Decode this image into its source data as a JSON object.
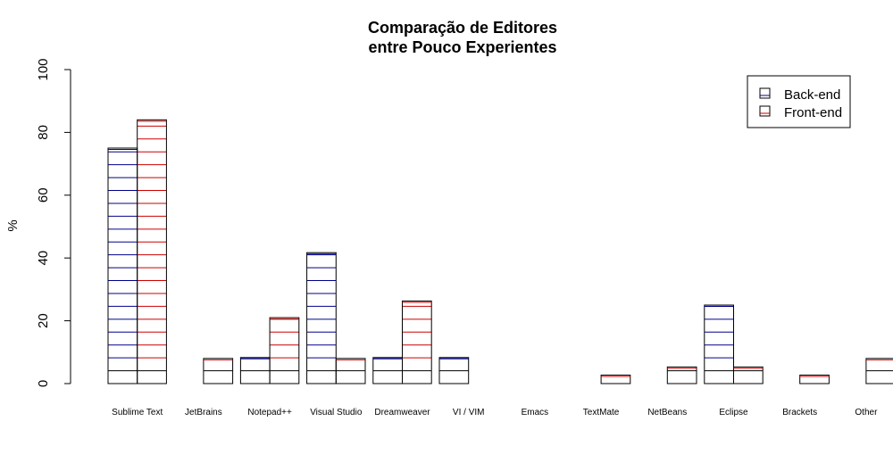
{
  "chart_data": {
    "type": "bar",
    "title": "Comparação de Editores",
    "subtitle": "entre Pouco Experientes",
    "ylabel": "%",
    "xlabel": "",
    "ylim": [
      0,
      100
    ],
    "yticks": [
      0,
      20,
      40,
      60,
      80,
      100
    ],
    "grid": false,
    "legend_position": "top-right",
    "categories": [
      "Sublime Text",
      "JetBrains",
      "Notepad++",
      "Visual Studio",
      "Dreamweaver",
      "VI / VIM",
      "Emacs",
      "TextMate",
      "NetBeans",
      "Eclipse",
      "Brackets",
      "Other"
    ],
    "series": [
      {
        "name": "Back-end",
        "color": "#00008b",
        "values": [
          75,
          0,
          8.3,
          41.7,
          8.3,
          8.3,
          0,
          0,
          0,
          25,
          0,
          0
        ]
      },
      {
        "name": "Front-end",
        "color": "#cc0000",
        "values": [
          84,
          8,
          21,
          8,
          26.3,
          0,
          0,
          2.7,
          5.3,
          5.3,
          2.7,
          8
        ]
      }
    ]
  }
}
